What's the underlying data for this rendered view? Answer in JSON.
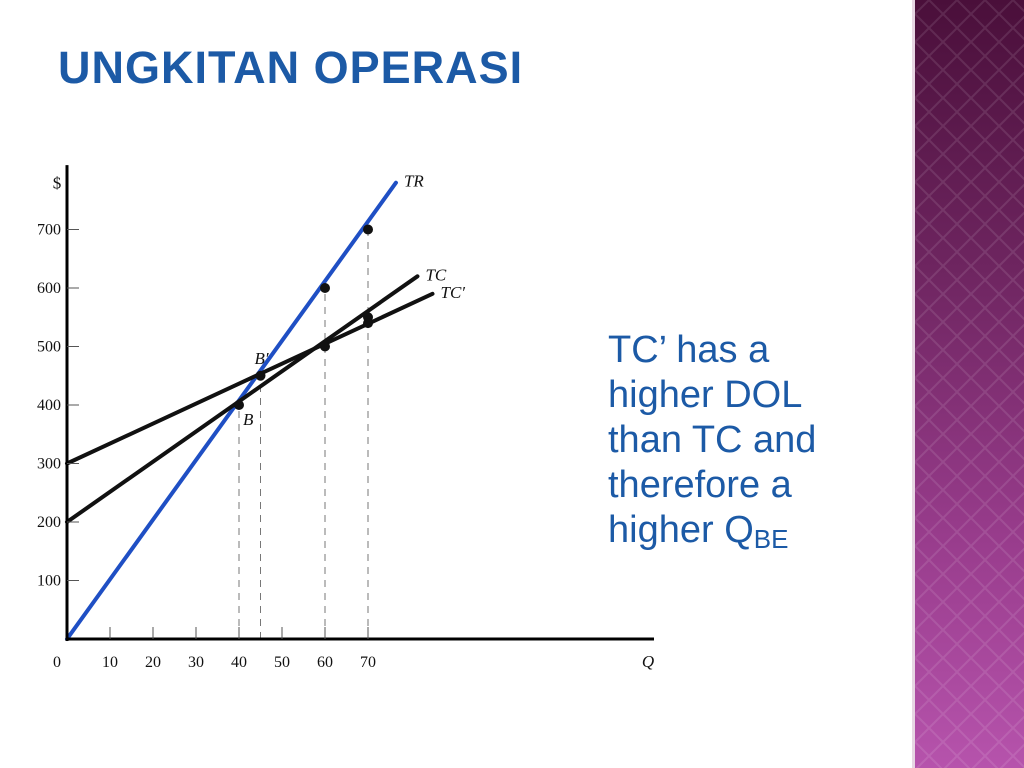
{
  "slide": {
    "title": "UNGKITAN OPERASI",
    "note_lines": [
      "TC’ has a",
      "higher DOL",
      "than TC and",
      "therefore a"
    ],
    "note_last_main": "higher Q",
    "note_last_sub": "BE"
  },
  "colors": {
    "title": "#1c5aa6",
    "note": "#1c5aa6",
    "tr_line": "#1f4fc4",
    "cost_lines": "#111111",
    "sidebar_top": "#4a0f3a",
    "sidebar_bottom": "#b653ac"
  },
  "chart_data": {
    "type": "line",
    "title": "",
    "ylabel": "$",
    "xlabel": "Q",
    "xlim": [
      0,
      80
    ],
    "ylim": [
      0,
      800
    ],
    "x_ticks": [
      0,
      10,
      20,
      30,
      40,
      50,
      60,
      70
    ],
    "x_tick_labels": [
      "0",
      "10",
      "20",
      "30",
      "40",
      "50",
      "60",
      "70"
    ],
    "y_ticks": [
      100,
      200,
      300,
      400,
      500,
      600,
      700
    ],
    "y_tick_labels": [
      "100",
      "200",
      "300",
      "400",
      "500",
      "600",
      "700"
    ],
    "series": [
      {
        "name": "TR",
        "x": [
          0,
          76.5
        ],
        "y": [
          0,
          780
        ]
      },
      {
        "name": "TC",
        "x": [
          0,
          81.5
        ],
        "y": [
          200,
          620
        ]
      },
      {
        "name": "TC′",
        "x": [
          0,
          85
        ],
        "y": [
          300,
          590
        ]
      }
    ],
    "points": [
      {
        "x": 40,
        "y": 400
      },
      {
        "x": 45,
        "y": 450
      },
      {
        "x": 60,
        "y": 500
      },
      {
        "x": 60,
        "y": 600
      },
      {
        "x": 70,
        "y": 550
      },
      {
        "x": 70,
        "y": 540
      },
      {
        "x": 70,
        "y": 700
      }
    ],
    "point_labels": [
      {
        "text": "B",
        "x": 40,
        "y": 400
      },
      {
        "text": "B′",
        "x": 45,
        "y": 450
      }
    ],
    "dashed_guides_x": [
      40,
      45,
      60,
      70
    ],
    "grid": false
  }
}
